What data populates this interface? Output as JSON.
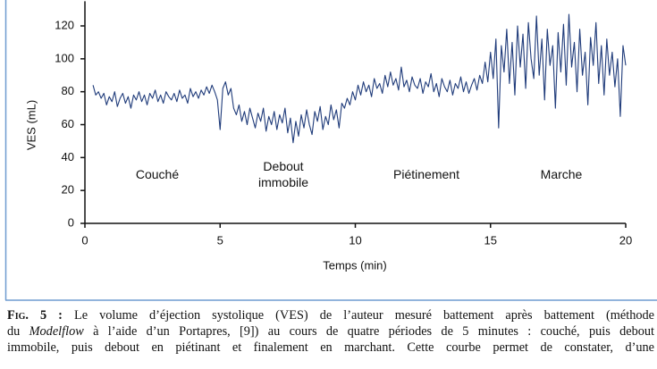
{
  "chart_data": {
    "type": "line",
    "ylabel": "VES (mL)",
    "xlabel": "Temps (min)",
    "annotations": [
      "Couché",
      "Debout immobile",
      "Piétinement",
      "Marche"
    ],
    "color": "#1f3b7a",
    "xlim": [
      0,
      20
    ],
    "xticks": [
      0,
      5,
      10,
      15,
      20
    ],
    "ylim": [
      0,
      135
    ],
    "yticks": [
      0,
      20,
      40,
      60,
      80,
      100,
      120
    ],
    "x": [
      0.3,
      0.4,
      0.5,
      0.6,
      0.7,
      0.8,
      0.9,
      1.0,
      1.1,
      1.2,
      1.3,
      1.4,
      1.5,
      1.6,
      1.7,
      1.8,
      1.9,
      2.0,
      2.1,
      2.2,
      2.3,
      2.4,
      2.5,
      2.6,
      2.7,
      2.8,
      2.9,
      3.0,
      3.1,
      3.2,
      3.3,
      3.4,
      3.5,
      3.6,
      3.7,
      3.8,
      3.9,
      4.0,
      4.1,
      4.2,
      4.3,
      4.4,
      4.5,
      4.6,
      4.7,
      4.8,
      4.9,
      5.0,
      5.1,
      5.2,
      5.3,
      5.4,
      5.5,
      5.6,
      5.7,
      5.8,
      5.9,
      6.0,
      6.1,
      6.2,
      6.3,
      6.4,
      6.5,
      6.6,
      6.7,
      6.8,
      6.9,
      7.0,
      7.1,
      7.2,
      7.3,
      7.4,
      7.5,
      7.6,
      7.7,
      7.8,
      7.9,
      8.0,
      8.1,
      8.2,
      8.3,
      8.4,
      8.5,
      8.6,
      8.7,
      8.8,
      8.9,
      9.0,
      9.1,
      9.2,
      9.3,
      9.4,
      9.5,
      9.6,
      9.7,
      9.8,
      9.9,
      10.0,
      10.1,
      10.2,
      10.3,
      10.4,
      10.5,
      10.6,
      10.7,
      10.8,
      10.9,
      11.0,
      11.1,
      11.2,
      11.3,
      11.4,
      11.5,
      11.6,
      11.7,
      11.8,
      11.9,
      12.0,
      12.1,
      12.2,
      12.3,
      12.4,
      12.5,
      12.6,
      12.7,
      12.8,
      12.9,
      13.0,
      13.1,
      13.2,
      13.3,
      13.4,
      13.5,
      13.6,
      13.7,
      13.8,
      13.9,
      14.0,
      14.1,
      14.2,
      14.3,
      14.4,
      14.5,
      14.6,
      14.7,
      14.8,
      14.9,
      15.0,
      15.1,
      15.2,
      15.3,
      15.4,
      15.5,
      15.6,
      15.7,
      15.8,
      15.9,
      16.0,
      16.1,
      16.2,
      16.3,
      16.4,
      16.5,
      16.6,
      16.7,
      16.8,
      16.9,
      17.0,
      17.1,
      17.2,
      17.3,
      17.4,
      17.5,
      17.6,
      17.7,
      17.8,
      17.9,
      18.0,
      18.1,
      18.2,
      18.3,
      18.4,
      18.5,
      18.6,
      18.7,
      18.8,
      18.9,
      19.0,
      19.1,
      19.2,
      19.3,
      19.4,
      19.5,
      19.6,
      19.7,
      19.8,
      19.9,
      20.0
    ],
    "values": [
      84,
      78,
      80,
      76,
      79,
      72,
      77,
      74,
      80,
      71,
      76,
      79,
      73,
      77,
      70,
      78,
      75,
      80,
      74,
      78,
      72,
      79,
      76,
      81,
      74,
      78,
      73,
      80,
      77,
      75,
      79,
      74,
      81,
      76,
      78,
      73,
      82,
      77,
      80,
      76,
      81,
      78,
      83,
      79,
      84,
      80,
      75,
      57,
      82,
      86,
      78,
      82,
      70,
      66,
      72,
      62,
      68,
      60,
      70,
      64,
      58,
      67,
      62,
      70,
      56,
      65,
      60,
      68,
      57,
      66,
      61,
      70,
      55,
      64,
      49,
      62,
      53,
      66,
      58,
      69,
      60,
      54,
      68,
      62,
      71,
      57,
      65,
      60,
      72,
      63,
      69,
      58,
      73,
      70,
      76,
      72,
      80,
      75,
      84,
      78,
      86,
      80,
      84,
      77,
      88,
      82,
      85,
      79,
      90,
      83,
      92,
      84,
      88,
      81,
      95,
      83,
      87,
      80,
      89,
      84,
      82,
      88,
      79,
      86,
      83,
      91,
      80,
      85,
      77,
      88,
      83,
      80,
      87,
      78,
      85,
      82,
      89,
      80,
      86,
      79,
      84,
      88,
      81,
      90,
      85,
      98,
      86,
      104,
      88,
      112,
      58,
      108,
      92,
      118,
      85,
      110,
      78,
      120,
      95,
      115,
      82,
      122,
      100,
      88,
      126,
      90,
      112,
      75,
      118,
      96,
      108,
      70,
      116,
      92,
      121,
      84,
      127,
      95,
      110,
      80,
      118,
      90,
      104,
      72,
      113,
      96,
      122,
      85,
      108,
      78,
      112,
      90,
      104,
      83,
      100,
      65,
      108,
      96
    ]
  },
  "caption": {
    "label": "Fig. 5 :",
    "line1": "Le volume d’éjection systolique (VES) de l’auteur mesuré battement après battement (méthode",
    "line2": [
      "du ",
      "Modelflow",
      " à l’aide d’un Portapres, [9]) au cours de quatre périodes de 5 minutes : couché, puis debout"
    ],
    "line3": "immobile, puis debout en piétinant et finalement en marchant. Cette courbe permet de constater, d’une"
  }
}
